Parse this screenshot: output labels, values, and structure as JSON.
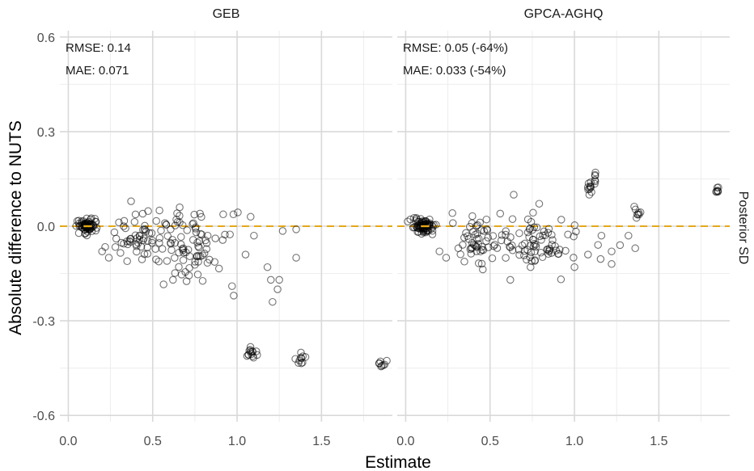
{
  "chart_data": {
    "type": "scatter",
    "facet_row_label": "Posterior SD",
    "xlabel": "Estimate",
    "ylabel": "Absolute difference to NUTS",
    "xlim": [
      -0.05,
      1.92
    ],
    "ylim": [
      -0.62,
      0.62
    ],
    "x_ticks": [
      "0.0",
      "0.5",
      "1.0",
      "1.5"
    ],
    "y_ticks": [
      "0.6",
      "0.3",
      "0.0",
      "-0.3",
      "-0.6"
    ],
    "grid": true,
    "reference_line": {
      "y": 0,
      "color": "#E6A817",
      "style": "dashed"
    },
    "panels": [
      {
        "name": "GEB",
        "stats": [
          "RMSE: 0.14",
          "MAE: 0.071"
        ],
        "clusters": [
          {
            "x": 0.115,
            "y": 0.0,
            "sx": 0.025,
            "sy": 0.012,
            "n": 70
          },
          {
            "x": 0.4,
            "y": -0.035,
            "sx": 0.07,
            "sy": 0.035,
            "n": 45
          },
          {
            "x": 0.72,
            "y": -0.06,
            "sx": 0.13,
            "sy": 0.055,
            "n": 90
          },
          {
            "x": 1.08,
            "y": -0.4,
            "sx": 0.02,
            "sy": 0.012,
            "n": 14
          },
          {
            "x": 1.37,
            "y": -0.42,
            "sx": 0.015,
            "sy": 0.012,
            "n": 10
          },
          {
            "x": 1.85,
            "y": -0.44,
            "sx": 0.012,
            "sy": 0.008,
            "n": 8
          }
        ],
        "points": [
          {
            "x": 0.3,
            "y": 0.012
          },
          {
            "x": 0.2,
            "y": -0.08
          },
          {
            "x": 0.24,
            "y": -0.1
          },
          {
            "x": 0.62,
            "y": -0.17
          },
          {
            "x": 0.97,
            "y": -0.19
          },
          {
            "x": 0.98,
            "y": -0.22
          },
          {
            "x": 1.08,
            "y": 0.03
          },
          {
            "x": 1.18,
            "y": -0.13
          },
          {
            "x": 1.2,
            "y": -0.17
          },
          {
            "x": 1.21,
            "y": -0.24
          },
          {
            "x": 1.24,
            "y": -0.2
          },
          {
            "x": 1.25,
            "y": -0.17
          },
          {
            "x": 1.35,
            "y": -0.1
          },
          {
            "x": 1.35,
            "y": -0.01
          },
          {
            "x": 1.27,
            "y": -0.015
          },
          {
            "x": 0.66,
            "y": 0.06
          },
          {
            "x": 0.54,
            "y": 0.05
          },
          {
            "x": 0.78,
            "y": 0.04
          },
          {
            "x": 1.05,
            "y": -0.09
          },
          {
            "x": 1.1,
            "y": -0.03
          }
        ]
      },
      {
        "name": "GPCA-AGHQ",
        "stats": [
          "RMSE: 0.05 (-64%)",
          "MAE: 0.033 (-54%)"
        ],
        "clusters": [
          {
            "x": 0.11,
            "y": 0.0,
            "sx": 0.03,
            "sy": 0.012,
            "n": 80
          },
          {
            "x": 0.42,
            "y": -0.04,
            "sx": 0.07,
            "sy": 0.035,
            "n": 45
          },
          {
            "x": 0.75,
            "y": -0.05,
            "sx": 0.14,
            "sy": 0.04,
            "n": 85
          },
          {
            "x": 1.09,
            "y": 0.12,
            "sx": 0.012,
            "sy": 0.012,
            "n": 10
          },
          {
            "x": 1.12,
            "y": 0.16,
            "sx": 0.006,
            "sy": 0.01,
            "n": 6
          },
          {
            "x": 1.37,
            "y": 0.045,
            "sx": 0.015,
            "sy": 0.01,
            "n": 8
          },
          {
            "x": 1.85,
            "y": 0.11,
            "sx": 0.012,
            "sy": 0.01,
            "n": 7
          }
        ],
        "points": [
          {
            "x": 0.24,
            "y": -0.1
          },
          {
            "x": 0.2,
            "y": -0.08
          },
          {
            "x": 0.28,
            "y": 0.01
          },
          {
            "x": 0.62,
            "y": -0.17
          },
          {
            "x": 0.64,
            "y": 0.1
          },
          {
            "x": 0.74,
            "y": -0.13
          },
          {
            "x": 1.0,
            "y": -0.13
          },
          {
            "x": 1.08,
            "y": -0.09
          },
          {
            "x": 1.22,
            "y": -0.12
          },
          {
            "x": 1.22,
            "y": -0.08
          },
          {
            "x": 1.27,
            "y": -0.06
          },
          {
            "x": 1.36,
            "y": -0.07
          },
          {
            "x": 1.32,
            "y": -0.03
          },
          {
            "x": 1.16,
            "y": -0.03
          },
          {
            "x": 0.56,
            "y": 0.04
          }
        ]
      }
    ]
  }
}
